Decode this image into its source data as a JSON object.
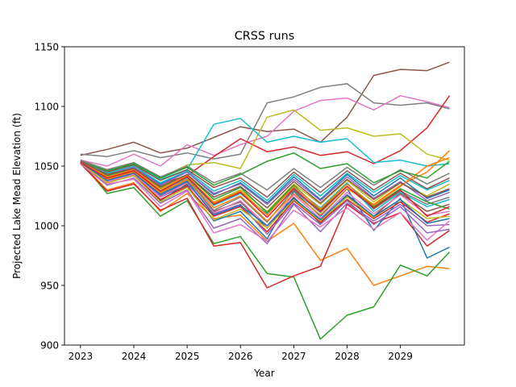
{
  "chart_data": {
    "type": "line",
    "title": "CRSS runs",
    "xlabel": "Year",
    "ylabel": "Projected Lake Mead Elevation (ft)",
    "xlim": [
      2022.7,
      2030.2
    ],
    "ylim": [
      900,
      1150
    ],
    "xticks": [
      2023,
      2024,
      2025,
      2026,
      2027,
      2028,
      2029
    ],
    "xtick_labels": [
      "2023",
      "2024",
      "2025",
      "2026",
      "2027",
      "2028",
      "2029"
    ],
    "yticks": [
      900,
      950,
      1000,
      1050,
      1100,
      1150
    ],
    "ytick_labels": [
      "900",
      "950",
      "1000",
      "1050",
      "1100",
      "1150"
    ],
    "grid": false,
    "legend": "none",
    "x": [
      2023.0,
      2023.5,
      2024.0,
      2024.5,
      2025.0,
      2025.5,
      2026.0,
      2026.5,
      2027.0,
      2027.5,
      2028.0,
      2028.5,
      2029.0,
      2029.5,
      2029.92
    ],
    "series": [
      {
        "color": "#8c564b",
        "values": [
          1059,
          1064,
          1070,
          1061,
          1065,
          1074,
          1083,
          1079,
          1081,
          1070,
          1091,
          1126,
          1131,
          1130,
          1137
        ]
      },
      {
        "color": "#7f7f7f",
        "values": [
          1060,
          1058,
          1063,
          1057,
          1061,
          1056,
          1060,
          1103,
          1108,
          1116,
          1119,
          1103,
          1101,
          1103,
          1098
        ]
      },
      {
        "color": "#e377c2",
        "values": [
          1055,
          1050,
          1060,
          1050,
          1068,
          1059,
          1068,
          1075,
          1096,
          1105,
          1107,
          1097,
          1109,
          1104,
          1099
        ]
      },
      {
        "color": "#d62728",
        "values": [
          1053,
          1042,
          1048,
          1035,
          1042,
          1058,
          1073,
          1062,
          1066,
          1059,
          1062,
          1052,
          1063,
          1082,
          1109
        ]
      },
      {
        "color": "#bcbd22",
        "values": [
          1054,
          1044,
          1049,
          1040,
          1051,
          1053,
          1048,
          1091,
          1097,
          1080,
          1082,
          1075,
          1077,
          1060,
          1055
        ]
      },
      {
        "color": "#17becf",
        "values": [
          1054,
          1045,
          1052,
          1039,
          1047,
          1085,
          1090,
          1070,
          1075,
          1070,
          1073,
          1053,
          1055,
          1050,
          1052
        ]
      },
      {
        "color": "#ff7f0e",
        "values": [
          1053,
          1030,
          1036,
          1012,
          1027,
          1006,
          1009,
          987,
          1002,
          971,
          981,
          950,
          958,
          966,
          964
        ]
      },
      {
        "color": "#2ca02c",
        "values": [
          1054,
          1027,
          1032,
          1008,
          1021,
          985,
          991,
          960,
          957,
          905,
          925,
          932,
          967,
          958,
          978
        ]
      },
      {
        "color": "#d62728",
        "values": [
          1052,
          1029,
          1035,
          1013,
          1023,
          983,
          986,
          948,
          958,
          966,
          1018,
          1002,
          1011,
          983,
          996
        ]
      },
      {
        "color": "#1f77b4",
        "values": [
          1053,
          1040,
          1046,
          1024,
          1034,
          1004,
          1012,
          989,
          1029,
          1008,
          1031,
          996,
          1023,
          973,
          982
        ]
      },
      {
        "color": "#9467bd",
        "values": [
          1052,
          1034,
          1040,
          1019,
          1030,
          998,
          1006,
          985,
          1018,
          995,
          1019,
          1004,
          1018,
          1000,
          1001
        ]
      },
      {
        "color": "#8c564b",
        "values": [
          1053,
          1037,
          1043,
          1021,
          1035,
          1012,
          1020,
          998,
          1024,
          1002,
          1025,
          1008,
          1027,
          1012,
          1018
        ]
      },
      {
        "color": "#e377c2",
        "values": [
          1052,
          1035,
          1039,
          1016,
          1029,
          994,
          1001,
          987,
          1013,
          999,
          1015,
          997,
          1011,
          988,
          1004
        ]
      },
      {
        "color": "#7f7f7f",
        "values": [
          1053,
          1039,
          1044,
          1027,
          1038,
          1013,
          1024,
          1003,
          1030,
          1011,
          1033,
          1014,
          1029,
          1018,
          1024
        ]
      },
      {
        "color": "#bcbd22",
        "values": [
          1054,
          1041,
          1047,
          1030,
          1041,
          1020,
          1030,
          1012,
          1035,
          1018,
          1038,
          1020,
          1036,
          1025,
          1035
        ]
      },
      {
        "color": "#17becf",
        "values": [
          1053,
          1040,
          1046,
          1029,
          1040,
          1017,
          1027,
          1010,
          1032,
          1015,
          1036,
          1012,
          1028,
          1016,
          1022
        ]
      },
      {
        "color": "#1f77b4",
        "values": [
          1054,
          1043,
          1049,
          1035,
          1045,
          1026,
          1036,
          1019,
          1041,
          1022,
          1043,
          1025,
          1040,
          1023,
          1030
        ]
      },
      {
        "color": "#ff7f0e",
        "values": [
          1053,
          1039,
          1045,
          1028,
          1039,
          1015,
          1025,
          1004,
          1027,
          1009,
          1031,
          1018,
          1034,
          1045,
          1063
        ]
      },
      {
        "color": "#2ca02c",
        "values": [
          1054,
          1042,
          1048,
          1032,
          1043,
          1022,
          1032,
          1011,
          1034,
          1013,
          1035,
          1016,
          1031,
          1020,
          1014
        ]
      },
      {
        "color": "#d62728",
        "values": [
          1053,
          1036,
          1042,
          1022,
          1033,
          1008,
          1016,
          995,
          1021,
          1003,
          1022,
          1006,
          1020,
          1003,
          1010
        ]
      },
      {
        "color": "#9467bd",
        "values": [
          1053,
          1038,
          1044,
          1025,
          1036,
          1010,
          1018,
          993,
          1019,
          1001,
          1021,
          1001,
          1016,
          994,
          997
        ]
      },
      {
        "color": "#8c564b",
        "values": [
          1054,
          1045,
          1051,
          1038,
          1047,
          1032,
          1040,
          1024,
          1045,
          1028,
          1046,
          1030,
          1044,
          1031,
          1040
        ]
      },
      {
        "color": "#e377c2",
        "values": [
          1053,
          1037,
          1043,
          1024,
          1036,
          1011,
          1021,
          1000,
          1026,
          1006,
          1028,
          1010,
          1026,
          1009,
          1012
        ]
      },
      {
        "color": "#7f7f7f",
        "values": [
          1055,
          1047,
          1053,
          1041,
          1050,
          1036,
          1044,
          1030,
          1048,
          1032,
          1049,
          1034,
          1047,
          1035,
          1044
        ]
      },
      {
        "color": "#bcbd22",
        "values": [
          1053,
          1036,
          1042,
          1020,
          1032,
          1005,
          1014,
          998,
          1022,
          1004,
          1024,
          1007,
          1022,
          1006,
          1008
        ]
      },
      {
        "color": "#17becf",
        "values": [
          1054,
          1044,
          1050,
          1036,
          1046,
          1029,
          1038,
          1021,
          1043,
          1025,
          1044,
          1028,
          1042,
          1030,
          1038
        ]
      },
      {
        "color": "#1f77b4",
        "values": [
          1053,
          1038,
          1044,
          1026,
          1037,
          1009,
          1017,
          1000,
          1023,
          1005,
          1026,
          1008,
          1022,
          1002,
          1006
        ]
      },
      {
        "color": "#ff7f0e",
        "values": [
          1054,
          1041,
          1047,
          1031,
          1042,
          1019,
          1029,
          1009,
          1033,
          1014,
          1035,
          1017,
          1033,
          1050,
          1057
        ]
      },
      {
        "color": "#2ca02c",
        "values": [
          1054,
          1046,
          1052,
          1040,
          1049,
          1034,
          1043,
          1054,
          1061,
          1048,
          1052,
          1036,
          1046,
          1040,
          1054
        ]
      },
      {
        "color": "#d62728",
        "values": [
          1053,
          1040,
          1046,
          1029,
          1041,
          1018,
          1028,
          1007,
          1031,
          1012,
          1033,
          1015,
          1030,
          1008,
          1016
        ]
      },
      {
        "color": "#9467bd",
        "values": [
          1054,
          1043,
          1049,
          1034,
          1045,
          1027,
          1035,
          1018,
          1039,
          1021,
          1041,
          1023,
          1037,
          1021,
          1028
        ]
      },
      {
        "color": "#8c564b",
        "values": [
          1054,
          1043,
          1048,
          1033,
          1043,
          1024,
          1033,
          1015,
          1037,
          1019,
          1039,
          1022,
          1036,
          1024,
          1031
        ]
      }
    ]
  }
}
